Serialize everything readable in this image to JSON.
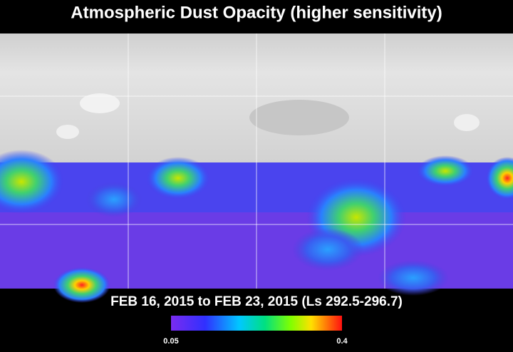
{
  "header": {
    "title": "Atmospheric Dust Opacity (higher sensitivity)"
  },
  "map": {
    "subtitle": "FEB 16, 2015 to FEB 23, 2015 (Ls 292.5-296.7)"
  },
  "colorbar": {
    "min": 0.05,
    "max": 0.4
  }
}
